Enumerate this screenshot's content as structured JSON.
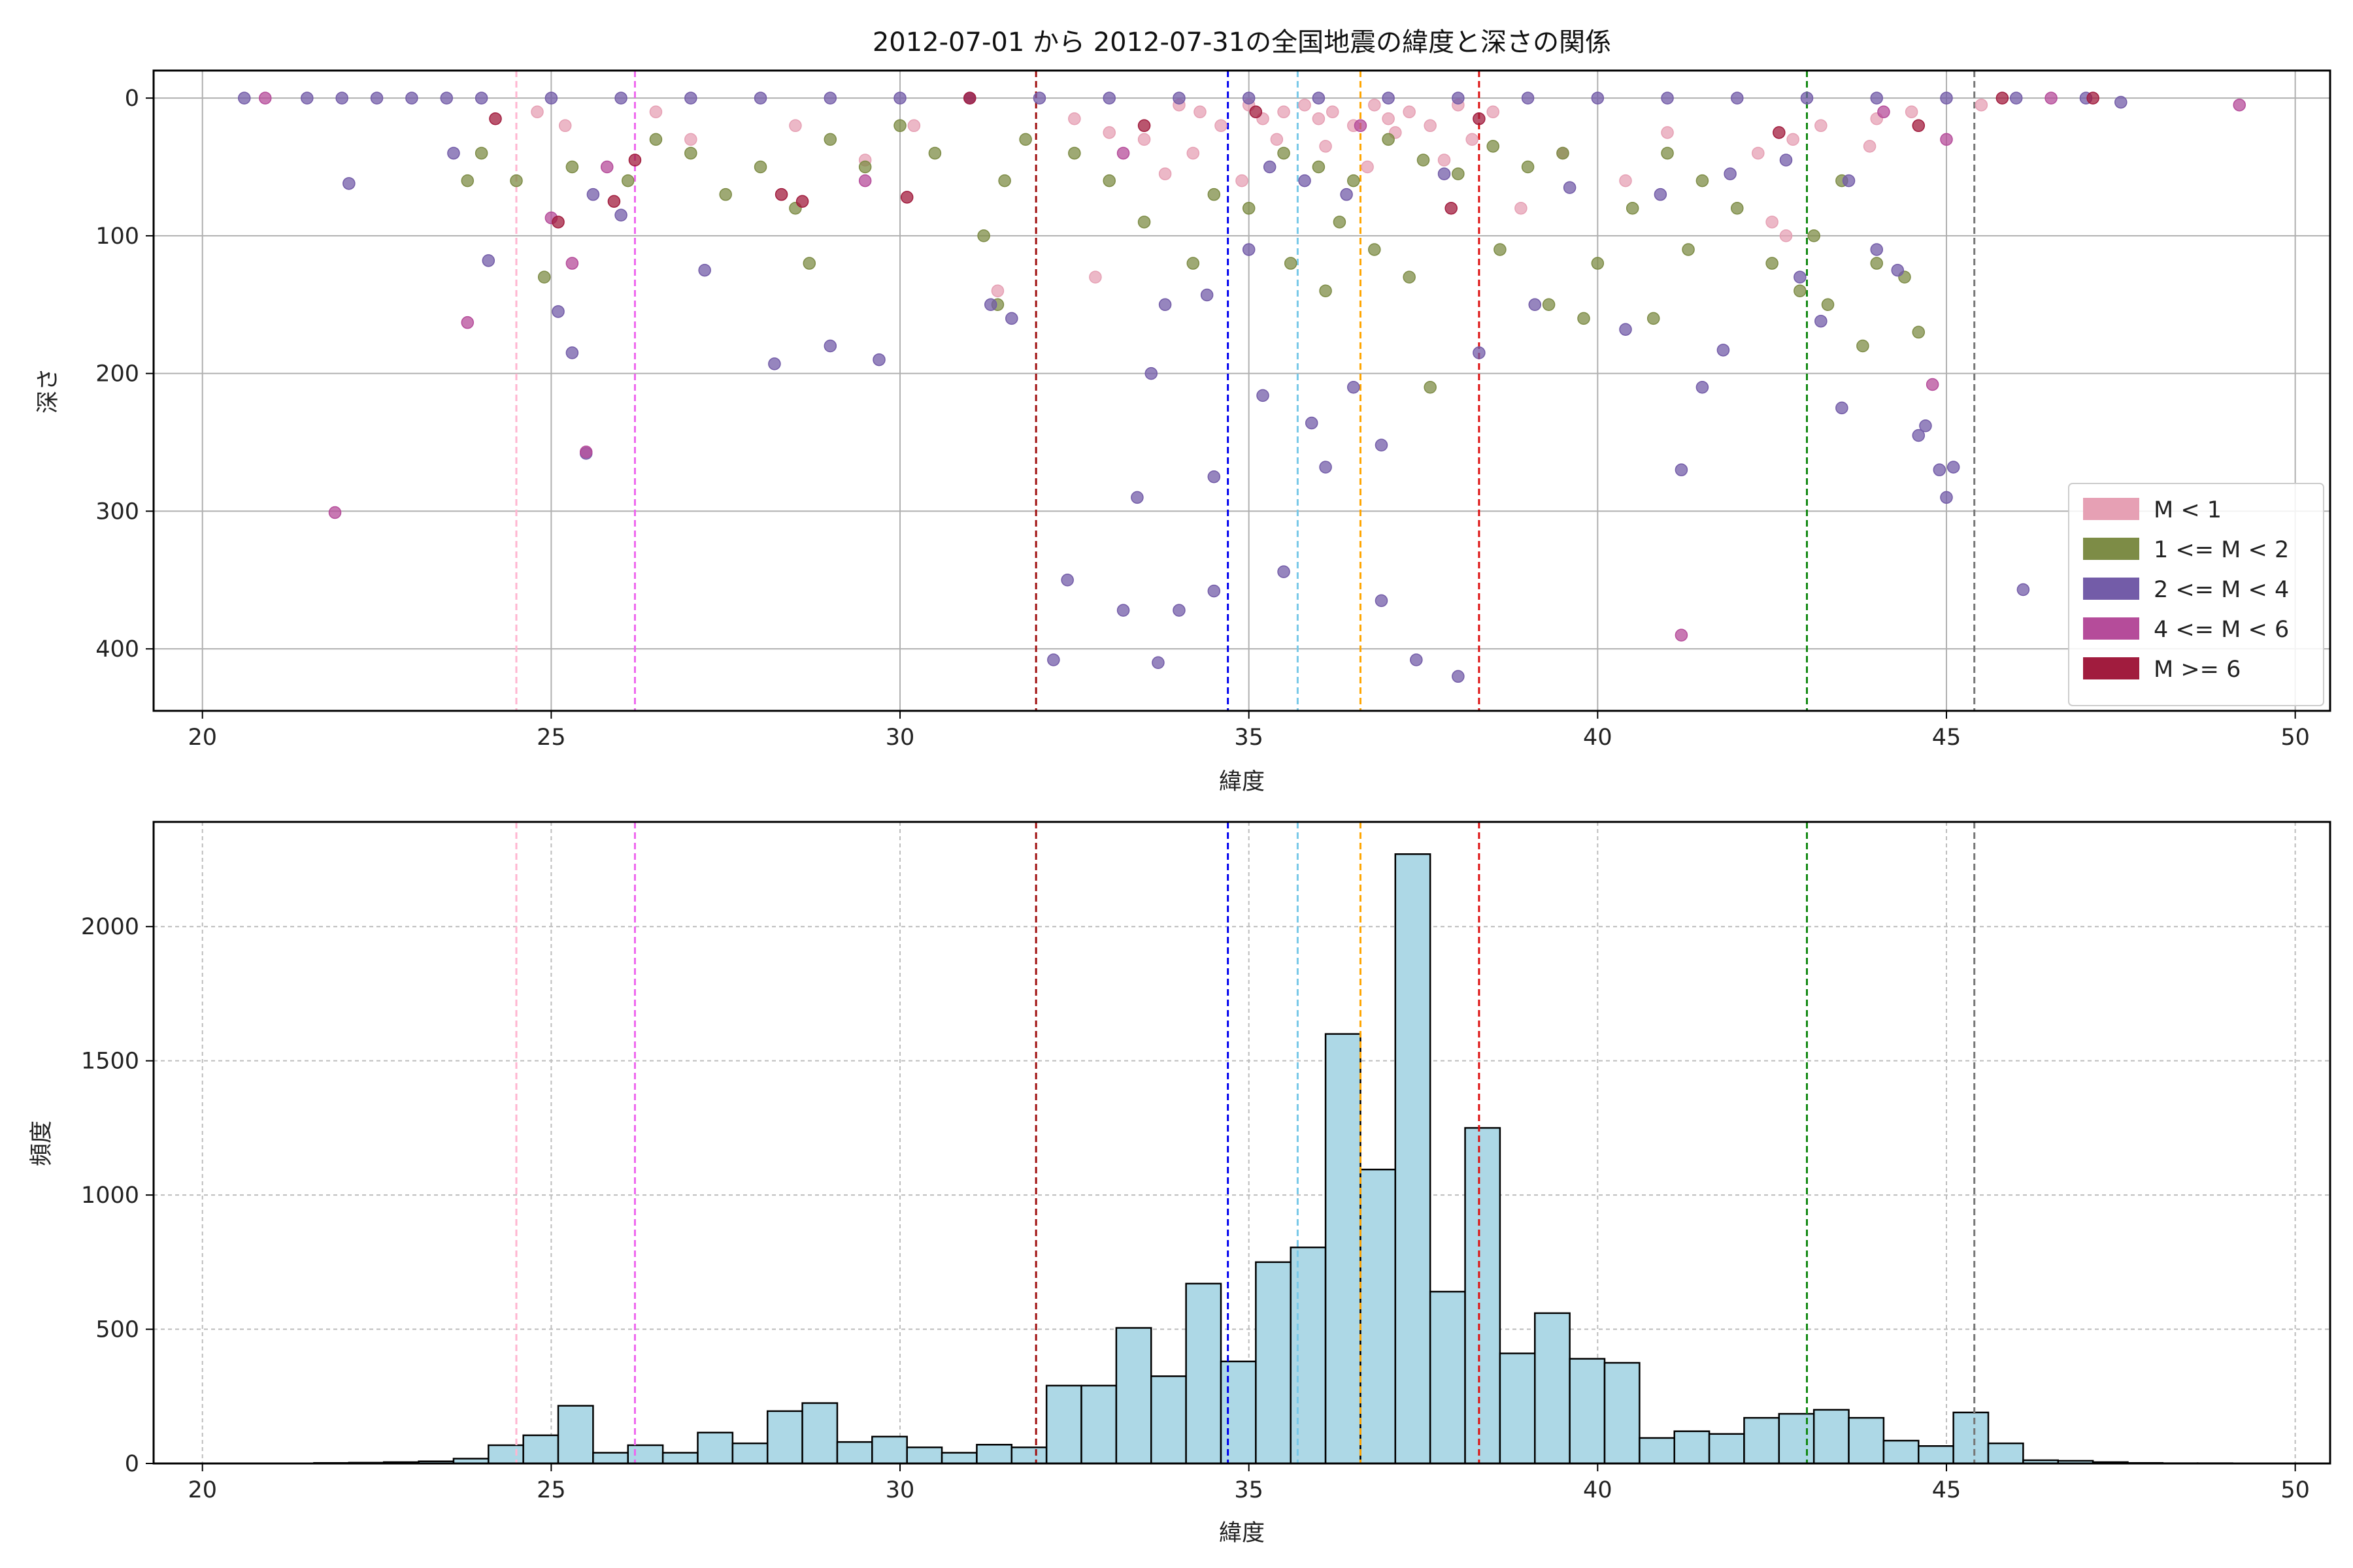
{
  "chart_data": [
    {
      "type": "scatter",
      "title": "2012-07-01 から 2012-07-31の全国地震の緯度と深さの関係",
      "xlabel": "緯度",
      "ylabel": "深さ",
      "xlim": [
        19.3,
        50.5
      ],
      "ylim": [
        445,
        -20
      ],
      "y_inverted": true,
      "grid": true,
      "x_ticks": [
        "20",
        "25",
        "30",
        "35",
        "40",
        "45",
        "50"
      ],
      "y_ticks": [
        "0",
        "100",
        "200",
        "300",
        "400"
      ],
      "legend_placement": "lower-right",
      "legend": [
        {
          "label": "M < 1",
          "color": "#e6a0b4"
        },
        {
          "label": "1 <= M < 2",
          "color": "#7d8c46"
        },
        {
          "label": "2 <= M < 4",
          "color": "#735ca8"
        },
        {
          "label": "4 <= M < 6",
          "color": "#b54c9a"
        },
        {
          "label": "M >= 6",
          "color": "#a11c3e"
        }
      ],
      "reference_lines": [
        {
          "x": 24.5,
          "color": "#ffb6d0"
        },
        {
          "x": 26.2,
          "color": "#ee66ee"
        },
        {
          "x": 31.95,
          "color": "#a01010"
        },
        {
          "x": 34.7,
          "color": "#0000ee"
        },
        {
          "x": 35.7,
          "color": "#79c9e8"
        },
        {
          "x": 36.6,
          "color": "#ffa500"
        },
        {
          "x": 38.3,
          "color": "#dd1111"
        },
        {
          "x": 43.0,
          "color": "#118811"
        },
        {
          "x": 45.4,
          "color": "#777777"
        }
      ],
      "series": [
        {
          "name": "M < 1",
          "color": "#e6a0b4",
          "points": [
            [
              34.0,
              5
            ],
            [
              34.3,
              10
            ],
            [
              34.6,
              20
            ],
            [
              35.0,
              5
            ],
            [
              35.2,
              15
            ],
            [
              35.5,
              10
            ],
            [
              35.8,
              5
            ],
            [
              36.0,
              15
            ],
            [
              36.2,
              10
            ],
            [
              36.5,
              20
            ],
            [
              36.8,
              5
            ],
            [
              37.0,
              15
            ],
            [
              37.3,
              10
            ],
            [
              37.6,
              20
            ],
            [
              38.0,
              5
            ],
            [
              38.5,
              10
            ],
            [
              32.5,
              15
            ],
            [
              33.0,
              25
            ],
            [
              33.5,
              30
            ],
            [
              34.2,
              40
            ],
            [
              35.4,
              30
            ],
            [
              36.1,
              35
            ],
            [
              37.1,
              25
            ],
            [
              27.0,
              30
            ],
            [
              28.5,
              20
            ],
            [
              26.5,
              10
            ],
            [
              42.3,
              40
            ],
            [
              42.8,
              30
            ],
            [
              43.2,
              20
            ],
            [
              44.0,
              15
            ],
            [
              43.9,
              35
            ],
            [
              42.5,
              90
            ],
            [
              42.7,
              100
            ],
            [
              40.4,
              60
            ],
            [
              39.5,
              40
            ],
            [
              38.9,
              80
            ],
            [
              32.8,
              130
            ],
            [
              31.4,
              140
            ],
            [
              25.2,
              20
            ],
            [
              24.8,
              10
            ],
            [
              34.9,
              60
            ],
            [
              36.7,
              50
            ],
            [
              37.8,
              45
            ],
            [
              38.2,
              30
            ],
            [
              33.8,
              55
            ],
            [
              29.5,
              45
            ],
            [
              30.2,
              20
            ],
            [
              44.5,
              10
            ],
            [
              45.5,
              5
            ],
            [
              41.0,
              25
            ]
          ]
        },
        {
          "name": "1 <= M < 2",
          "color": "#7d8c46",
          "points": [
            [
              35.5,
              40
            ],
            [
              36.0,
              50
            ],
            [
              36.5,
              60
            ],
            [
              37.0,
              30
            ],
            [
              37.5,
              45
            ],
            [
              38.0,
              55
            ],
            [
              38.5,
              35
            ],
            [
              39.0,
              50
            ],
            [
              39.5,
              40
            ],
            [
              35.0,
              80
            ],
            [
              36.3,
              90
            ],
            [
              36.8,
              110
            ],
            [
              37.3,
              130
            ],
            [
              37.6,
              210
            ],
            [
              34.5,
              70
            ],
            [
              33.5,
              90
            ],
            [
              33.0,
              60
            ],
            [
              32.5,
              40
            ],
            [
              31.8,
              30
            ],
            [
              31.5,
              60
            ],
            [
              31.2,
              100
            ],
            [
              31.4,
              150
            ],
            [
              30.5,
              40
            ],
            [
              30.0,
              20
            ],
            [
              29.5,
              50
            ],
            [
              29.0,
              30
            ],
            [
              28.7,
              120
            ],
            [
              28.5,
              80
            ],
            [
              28.0,
              50
            ],
            [
              27.5,
              70
            ],
            [
              27.0,
              40
            ],
            [
              26.5,
              30
            ],
            [
              26.1,
              60
            ],
            [
              25.3,
              50
            ],
            [
              24.9,
              130
            ],
            [
              24.5,
              60
            ],
            [
              24.0,
              40
            ],
            [
              23.8,
              60
            ],
            [
              41.0,
              40
            ],
            [
              41.5,
              60
            ],
            [
              42.0,
              80
            ],
            [
              42.5,
              120
            ],
            [
              42.9,
              140
            ],
            [
              43.1,
              100
            ],
            [
              43.5,
              60
            ],
            [
              44.0,
              120
            ],
            [
              44.4,
              130
            ],
            [
              44.6,
              170
            ],
            [
              43.8,
              180
            ],
            [
              40.5,
              80
            ],
            [
              40.0,
              120
            ],
            [
              39.8,
              160
            ],
            [
              39.3,
              150
            ],
            [
              38.6,
              110
            ],
            [
              36.1,
              140
            ],
            [
              35.6,
              120
            ],
            [
              34.2,
              120
            ],
            [
              40.8,
              160
            ],
            [
              41.3,
              110
            ],
            [
              43.3,
              150
            ]
          ]
        },
        {
          "name": "2 <= M < 4",
          "color": "#735ca8",
          "points": [
            [
              20.6,
              0
            ],
            [
              21.5,
              0
            ],
            [
              22.0,
              0
            ],
            [
              22.5,
              0
            ],
            [
              23.0,
              0
            ],
            [
              23.5,
              0
            ],
            [
              24.0,
              0
            ],
            [
              25.0,
              0
            ],
            [
              26.0,
              0
            ],
            [
              27.0,
              0
            ],
            [
              28.0,
              0
            ],
            [
              29.0,
              0
            ],
            [
              30.0,
              0
            ],
            [
              31.0,
              0
            ],
            [
              32.0,
              0
            ],
            [
              33.0,
              0
            ],
            [
              34.0,
              0
            ],
            [
              35.0,
              0
            ],
            [
              36.0,
              0
            ],
            [
              37.0,
              0
            ],
            [
              38.0,
              0
            ],
            [
              39.0,
              0
            ],
            [
              40.0,
              0
            ],
            [
              41.0,
              0
            ],
            [
              42.0,
              0
            ],
            [
              43.0,
              0
            ],
            [
              44.0,
              0
            ],
            [
              45.0,
              0
            ],
            [
              46.0,
              0
            ],
            [
              47.0,
              0
            ],
            [
              47.5,
              3
            ],
            [
              22.1,
              62
            ],
            [
              24.1,
              118
            ],
            [
              25.3,
              185
            ],
            [
              25.5,
              258
            ],
            [
              25.1,
              155
            ],
            [
              25.6,
              70
            ],
            [
              26.0,
              85
            ],
            [
              23.6,
              40
            ],
            [
              27.2,
              125
            ],
            [
              28.2,
              193
            ],
            [
              29.0,
              180
            ],
            [
              29.7,
              190
            ],
            [
              31.3,
              150
            ],
            [
              31.6,
              160
            ],
            [
              32.4,
              350
            ],
            [
              32.2,
              408
            ],
            [
              33.2,
              372
            ],
            [
              33.4,
              290
            ],
            [
              33.7,
              410
            ],
            [
              33.6,
              200
            ],
            [
              33.8,
              150
            ],
            [
              34.0,
              372
            ],
            [
              34.5,
              358
            ],
            [
              34.5,
              275
            ],
            [
              34.4,
              143
            ],
            [
              35.0,
              110
            ],
            [
              35.2,
              216
            ],
            [
              35.5,
              344
            ],
            [
              35.9,
              236
            ],
            [
              36.1,
              268
            ],
            [
              36.5,
              210
            ],
            [
              36.9,
              252
            ],
            [
              36.9,
              365
            ],
            [
              37.4,
              408
            ],
            [
              38.0,
              420
            ],
            [
              38.3,
              185
            ],
            [
              39.1,
              150
            ],
            [
              40.4,
              168
            ],
            [
              41.2,
              270
            ],
            [
              41.5,
              210
            ],
            [
              41.8,
              183
            ],
            [
              42.9,
              130
            ],
            [
              43.2,
              162
            ],
            [
              43.5,
              225
            ],
            [
              44.0,
              110
            ],
            [
              44.3,
              125
            ],
            [
              44.6,
              245
            ],
            [
              44.7,
              238
            ],
            [
              44.9,
              270
            ],
            [
              45.0,
              290
            ],
            [
              45.1,
              268
            ],
            [
              46.1,
              357
            ],
            [
              35.3,
              50
            ],
            [
              35.8,
              60
            ],
            [
              36.4,
              70
            ],
            [
              37.8,
              55
            ],
            [
              39.6,
              65
            ],
            [
              40.9,
              70
            ],
            [
              41.9,
              55
            ],
            [
              42.7,
              45
            ],
            [
              43.6,
              60
            ]
          ]
        },
        {
          "name": "4 <= M < 6",
          "color": "#b54c9a",
          "points": [
            [
              20.9,
              0
            ],
            [
              21.9,
              301
            ],
            [
              23.8,
              163
            ],
            [
              25.0,
              87
            ],
            [
              25.5,
              257
            ],
            [
              25.3,
              120
            ],
            [
              25.8,
              50
            ],
            [
              44.8,
              208
            ],
            [
              41.2,
              390
            ],
            [
              45.0,
              30
            ],
            [
              46.5,
              0
            ],
            [
              49.2,
              5
            ],
            [
              44.1,
              10
            ],
            [
              29.5,
              60
            ],
            [
              33.2,
              40
            ],
            [
              36.6,
              20
            ]
          ]
        },
        {
          "name": "M >= 6",
          "color": "#a11c3e",
          "points": [
            [
              24.2,
              15
            ],
            [
              25.1,
              90
            ],
            [
              25.9,
              75
            ],
            [
              26.2,
              45
            ],
            [
              28.3,
              70
            ],
            [
              28.6,
              75
            ],
            [
              30.1,
              72
            ],
            [
              31.0,
              0
            ],
            [
              33.5,
              20
            ],
            [
              35.1,
              10
            ],
            [
              37.9,
              80
            ],
            [
              38.3,
              15
            ],
            [
              42.6,
              25
            ],
            [
              44.6,
              20
            ],
            [
              45.8,
              0
            ],
            [
              47.1,
              0
            ]
          ]
        }
      ]
    },
    {
      "type": "bar",
      "subtype": "histogram",
      "xlabel": "緯度",
      "ylabel": "頻度",
      "xlim": [
        19.3,
        50.5
      ],
      "ylim": [
        0,
        2390
      ],
      "grid": true,
      "x_ticks": [
        "20",
        "25",
        "30",
        "35",
        "40",
        "45",
        "50"
      ],
      "y_ticks": [
        "0",
        "500",
        "1000",
        "1500",
        "2000"
      ],
      "bin_width": 0.5,
      "bin_start": 20.6,
      "values": [
        0,
        0,
        2,
        3,
        5,
        8,
        18,
        68,
        105,
        215,
        40,
        68,
        40,
        115,
        75,
        195,
        225,
        80,
        100,
        60,
        40,
        70,
        60,
        290,
        290,
        505,
        325,
        670,
        380,
        750,
        805,
        1600,
        1095,
        2270,
        640,
        1250,
        410,
        560,
        390,
        375,
        95,
        120,
        110,
        170,
        185,
        200,
        170,
        85,
        65,
        190,
        75,
        12,
        10,
        5,
        2,
        1,
        1,
        0,
        0
      ],
      "reference_lines": [
        {
          "x": 24.5,
          "color": "#ffb6d0"
        },
        {
          "x": 26.2,
          "color": "#ee66ee"
        },
        {
          "x": 31.95,
          "color": "#a01010"
        },
        {
          "x": 34.7,
          "color": "#0000ee"
        },
        {
          "x": 35.7,
          "color": "#79c9e8"
        },
        {
          "x": 36.6,
          "color": "#ffa500"
        },
        {
          "x": 38.3,
          "color": "#dd1111"
        },
        {
          "x": 43.0,
          "color": "#118811"
        },
        {
          "x": 45.4,
          "color": "#777777"
        }
      ],
      "bar_color": "#add8e6",
      "edge_color": "#000000"
    }
  ]
}
